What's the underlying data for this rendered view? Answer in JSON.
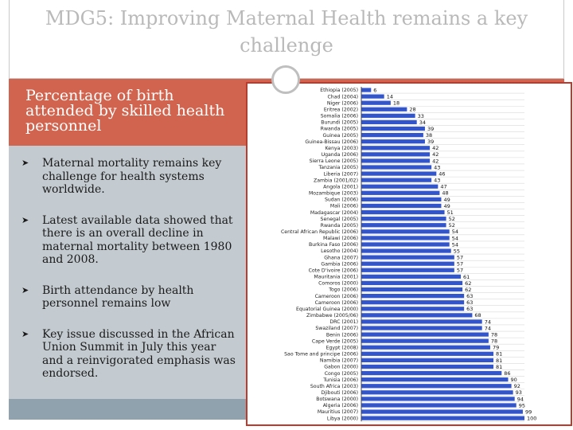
{
  "slide": {
    "title": "MDG5: Improving Maternal Health remains a key challenge",
    "subtitle": "Percentage of birth attended by skilled health personnel",
    "bullets": [
      {
        "icon": "bullet-arrow-icon",
        "text": "Maternal mortality remains key challenge for health systems worldwide."
      },
      {
        "icon": "bullet-arrow-icon",
        "text": "Latest available data showed that there is an overall decline in maternal mortality between 1980 and 2008."
      },
      {
        "icon": "bullet-arrow-icon",
        "text": "Birth attendance by health personnel  remains low"
      },
      {
        "icon": "bullet-arrow-icon",
        "text": "Key issue discussed in the African Union Summit in July this year and a reinvigorated emphasis was endorsed."
      }
    ]
  },
  "colors": {
    "accent_red": "#d1644e",
    "panel_grey": "#c3cbd0",
    "bar_fill": "#3355cc",
    "frame_border": "#c0392b",
    "title_grey": "#b9b9b9"
  },
  "chart_data": {
    "type": "bar",
    "orientation": "horizontal",
    "title": "",
    "xlabel": "",
    "ylabel": "",
    "xlim": [
      0,
      100
    ],
    "grid": "horizontal",
    "categories": [
      "Ethiopia (2005)",
      "Chad (2004)",
      "Niger (2006)",
      "Eritrea (2002)",
      "Somalia (2006)",
      "Burundi (2005)",
      "Rwanda (2005)",
      "Guinea (2005)",
      "Guinea-Bissau (2006)",
      "Kenya (2003)",
      "Uganda (2006)",
      "Sierra Leone (2005)",
      "Tanzania (2005)",
      "Liberia (2007)",
      "Zambia (2001/02)",
      "Angola (2001)",
      "Mozambique (2003)",
      "Sudan (2006)",
      "Mali (2006)",
      "Madagascar (2004)",
      "Senegal (2005)",
      "Rwanda (2005)",
      "Central African Republic (2006)",
      "Malawi (2006)",
      "Burkina Faso (2006)",
      "Lesotho (2004)",
      "Ghana (2007)",
      "Gambia (2006)",
      "Cote D'ivoire (2006)",
      "Mauritania (2001)",
      "Comoros (2000)",
      "Togo (2006)",
      "Cameroon (2006)",
      "Cameroon (2006)",
      "Equatorial Guinea (2000)",
      "Zimbabwe (2005/06)",
      "DRC (2001)",
      "Swaziland (2007)",
      "Benin (2006)",
      "Cape Verde (2005)",
      "Egypt (2008)",
      "Sao Tome and principe (2006)",
      "Namibia (2007)",
      "Gabon (2000)",
      "Congo (2005)",
      "Tunisia (2006)",
      "South Africa (2003)",
      "Djibouti (2006)",
      "Botswana (2000)",
      "Algeria (2006)",
      "Mauritius (2007)",
      "Libya (2000)"
    ],
    "values": [
      6,
      14,
      18,
      28,
      33,
      34,
      39,
      38,
      39,
      42,
      42,
      42,
      43,
      46,
      43,
      47,
      48,
      49,
      49,
      51,
      52,
      52,
      54,
      54,
      54,
      55,
      57,
      57,
      57,
      61,
      62,
      62,
      63,
      63,
      63,
      68,
      74,
      74,
      78,
      78,
      79,
      81,
      81,
      81,
      86,
      90,
      92,
      93,
      94,
      95,
      99,
      100
    ]
  }
}
